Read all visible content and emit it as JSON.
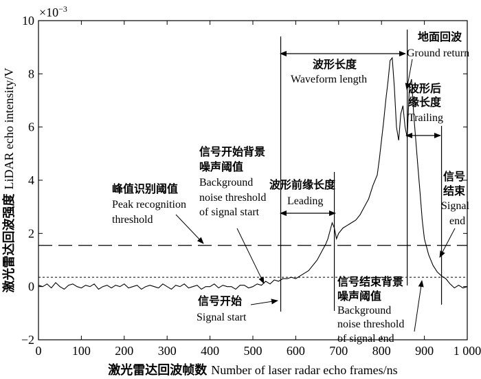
{
  "chart_data": {
    "type": "line",
    "title": "",
    "xlabel_cn": "激光雷达回波帧数",
    "xlabel_en": "Number of laser radar echo frames/ns",
    "ylabel_cn": "激光雷达回波强度",
    "ylabel_en": "LiDAR echo intensity/V",
    "y_multiplier": "×10",
    "y_multiplier_exp": "−3",
    "xlim": [
      0,
      1000
    ],
    "ylim": [
      -2,
      10
    ],
    "x_ticks": [
      0,
      100,
      200,
      300,
      400,
      500,
      600,
      700,
      800,
      900,
      1000
    ],
    "x_tick_labels": [
      "0",
      "100",
      "200",
      "300",
      "400",
      "500",
      "600",
      "700",
      "800",
      "900",
      "1 000"
    ],
    "y_ticks": [
      -2,
      0,
      2,
      4,
      6,
      8,
      10
    ],
    "y_tick_labels": [
      "−2",
      "0",
      "2",
      "4",
      "6",
      "8",
      "10"
    ],
    "series": [
      {
        "name": "",
        "x": [
          0,
          10,
          20,
          30,
          40,
          50,
          60,
          70,
          80,
          90,
          100,
          110,
          120,
          130,
          140,
          150,
          160,
          170,
          180,
          190,
          200,
          210,
          220,
          230,
          240,
          250,
          260,
          270,
          280,
          290,
          300,
          310,
          320,
          330,
          340,
          350,
          360,
          370,
          380,
          390,
          400,
          410,
          420,
          430,
          440,
          450,
          460,
          470,
          480,
          490,
          500,
          510,
          520,
          530,
          540,
          550,
          560,
          570,
          580,
          590,
          600,
          610,
          620,
          630,
          640,
          650,
          660,
          670,
          675,
          680,
          685,
          690,
          695,
          700,
          710,
          720,
          730,
          740,
          750,
          760,
          770,
          780,
          790,
          795,
          800,
          805,
          810,
          815,
          820,
          825,
          830,
          835,
          840,
          845,
          850,
          855,
          860,
          865,
          870,
          875,
          880,
          885,
          890,
          895,
          900,
          910,
          920,
          930,
          940,
          950,
          960,
          970,
          980,
          990,
          1000
        ],
        "y": [
          0.05,
          0.0,
          0.1,
          -0.05,
          0.15,
          0.0,
          -0.1,
          0.05,
          0.1,
          0.0,
          -0.05,
          0.05,
          0.0,
          0.1,
          -0.1,
          0.0,
          0.05,
          -0.05,
          0.05,
          0.0,
          0.1,
          -0.05,
          0.0,
          0.05,
          -0.1,
          0.0,
          0.05,
          0.0,
          -0.05,
          0.1,
          0.0,
          -0.1,
          0.05,
          0.0,
          0.1,
          -0.05,
          0.0,
          0.05,
          -0.1,
          0.0,
          0.0,
          0.1,
          -0.05,
          0.05,
          0.0,
          0.0,
          -0.1,
          0.05,
          0.05,
          -0.05,
          0.0,
          0.1,
          0.05,
          0.2,
          0.1,
          0.25,
          0.2,
          0.3,
          0.3,
          0.35,
          0.3,
          0.4,
          0.5,
          0.6,
          0.8,
          1.0,
          1.3,
          1.6,
          1.8,
          2.1,
          2.4,
          2.2,
          1.8,
          2.0,
          2.2,
          2.3,
          2.4,
          2.5,
          2.7,
          3.0,
          3.3,
          3.8,
          4.2,
          4.8,
          5.5,
          6.2,
          7.0,
          7.7,
          8.5,
          8.6,
          7.5,
          6.0,
          5.5,
          6.5,
          6.8,
          6.0,
          5.6,
          7.5,
          7.8,
          6.5,
          5.5,
          4.5,
          3.5,
          2.5,
          1.8,
          1.2,
          0.8,
          0.55,
          0.4,
          0.3,
          0.1,
          -0.05,
          0.05,
          -0.05,
          0.0
        ]
      }
    ],
    "reference_lines": {
      "peak_threshold": 1.55,
      "background_threshold": 0.35,
      "vertical_markers": [
        565,
        690,
        860,
        940
      ]
    },
    "annotations": {
      "waveform_length_cn": "波形长度",
      "waveform_length_en": "Waveform length",
      "ground_return_cn": "地面回波",
      "ground_return_en": "Ground return",
      "trailing_cn_1": "波形后",
      "trailing_cn_2": "缘长度",
      "trailing_en": "Trailing",
      "leading_cn": "波形前缘长度",
      "leading_en": "Leading",
      "signal_end_cn_1": "信号",
      "signal_end_cn_2": "结束",
      "signal_end_en_1": "Signal",
      "signal_end_en_2": "end",
      "peak_cn": "峰值识别阈值",
      "peak_en_1": "Peak recognition",
      "peak_en_2": "threshold",
      "start_bg_cn_1": "信号开始背景",
      "start_bg_cn_2": "噪声阈值",
      "start_bg_en_1": "Background",
      "start_bg_en_2": "noise threshold",
      "start_bg_en_3": "of signal start",
      "signal_start_cn": "信号开始",
      "signal_start_en": "Signal start",
      "end_bg_cn_1": "信号结束背景",
      "end_bg_cn_2": "噪声阈值",
      "end_bg_en_1": "Background",
      "end_bg_en_2": "noise threshold",
      "end_bg_en_3": "of signal end"
    }
  }
}
